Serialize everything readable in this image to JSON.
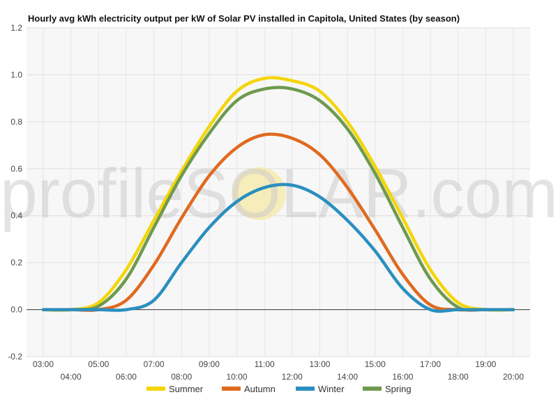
{
  "chart_data": {
    "type": "line",
    "title": "Hourly avg kWh electricity output per kW of Solar PV installed in Capitola, United States (by season)",
    "watermark": "profileSOLAR.com",
    "xlabel": "",
    "ylabel": "",
    "ylim": [
      -0.2,
      1.2
    ],
    "yticks": [
      "-0.2",
      "0.0",
      "0.2",
      "0.4",
      "0.6",
      "0.8",
      "1.0",
      "1.2"
    ],
    "xlim": [
      3,
      20
    ],
    "xticks_upper": [
      "03:00",
      "05:00",
      "07:00",
      "09:00",
      "11:00",
      "13:00",
      "15:00",
      "17:00",
      "19:00"
    ],
    "xticks_lower": [
      "04:00",
      "06:00",
      "08:00",
      "10:00",
      "12:00",
      "14:00",
      "16:00",
      "18:00",
      "20:00"
    ],
    "grid": true,
    "legend_position": "bottom",
    "x": [
      "03:00",
      "04:00",
      "05:00",
      "06:00",
      "07:00",
      "08:00",
      "09:00",
      "10:00",
      "11:00",
      "12:00",
      "13:00",
      "14:00",
      "15:00",
      "16:00",
      "17:00",
      "18:00",
      "19:00",
      "20:00"
    ],
    "series": [
      {
        "name": "Summer",
        "color": "#f5d50a",
        "values": [
          0,
          0,
          0.03,
          0.17,
          0.38,
          0.59,
          0.78,
          0.93,
          0.985,
          0.975,
          0.93,
          0.8,
          0.61,
          0.39,
          0.17,
          0.03,
          0,
          0
        ]
      },
      {
        "name": "Autumn",
        "color": "#e06a1f",
        "values": [
          0,
          0,
          0,
          0.04,
          0.19,
          0.39,
          0.57,
          0.69,
          0.745,
          0.73,
          0.66,
          0.52,
          0.34,
          0.15,
          0.02,
          0,
          0,
          0
        ]
      },
      {
        "name": "Winter",
        "color": "#2a8fc0",
        "values": [
          0,
          0,
          0,
          0,
          0.04,
          0.2,
          0.35,
          0.46,
          0.52,
          0.53,
          0.48,
          0.38,
          0.25,
          0.09,
          0,
          0,
          0,
          0
        ]
      },
      {
        "name": "Spring",
        "color": "#6e9a4e",
        "values": [
          0,
          0,
          0.015,
          0.13,
          0.35,
          0.57,
          0.75,
          0.89,
          0.94,
          0.94,
          0.89,
          0.77,
          0.58,
          0.35,
          0.13,
          0.01,
          0,
          0
        ]
      }
    ]
  }
}
